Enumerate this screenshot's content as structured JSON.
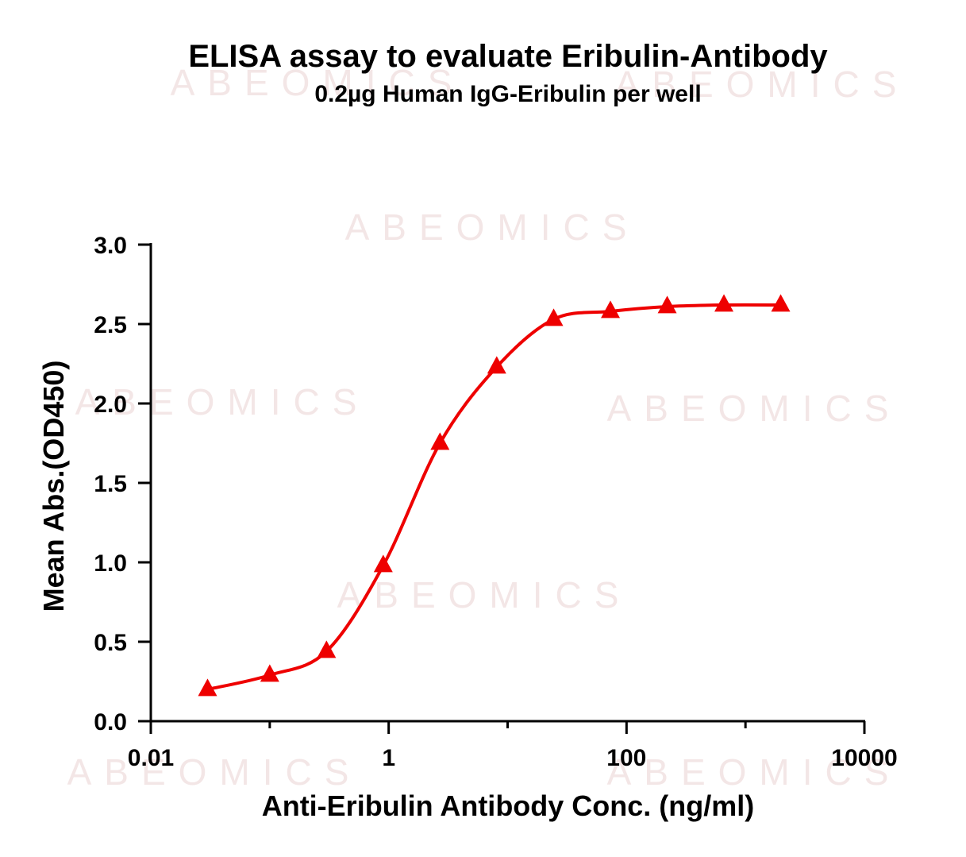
{
  "chart_data": {
    "type": "scatter",
    "title": "ELISA assay to evaluate Eribulin-Antibody",
    "subtitle": "0.2µg Human IgG-Eribulin per well",
    "xlabel": "Anti-Eribulin  Antibody Conc. (ng/ml)",
    "ylabel": "Mean Abs.(OD450)",
    "x_scale": "log",
    "xlim": [
      0.01,
      10000
    ],
    "ylim": [
      0,
      3.0
    ],
    "x_ticks": [
      0.01,
      1,
      100,
      10000
    ],
    "x_tick_labels": [
      "0.01",
      "1",
      "100",
      "10000"
    ],
    "y_ticks": [
      0,
      0.5,
      1.0,
      1.5,
      2.0,
      2.5,
      3.0
    ],
    "y_tick_labels": [
      "0.0",
      "0.5",
      "1.0",
      "1.5",
      "2.0",
      "2.5",
      "3.0"
    ],
    "grid": false,
    "legend": "none",
    "watermark": "ABEOMICS",
    "series": [
      {
        "marker": "triangle",
        "color": "#ee0000",
        "fit": "4PL sigmoidal curve",
        "x": [
          0.03,
          0.1,
          0.3,
          0.9,
          2.7,
          8.1,
          24.4,
          73.2,
          219.7,
          659.1,
          1977.3
        ],
        "y": [
          0.2,
          0.29,
          0.44,
          0.98,
          1.75,
          2.23,
          2.53,
          2.58,
          2.61,
          2.62,
          2.62
        ]
      }
    ]
  }
}
